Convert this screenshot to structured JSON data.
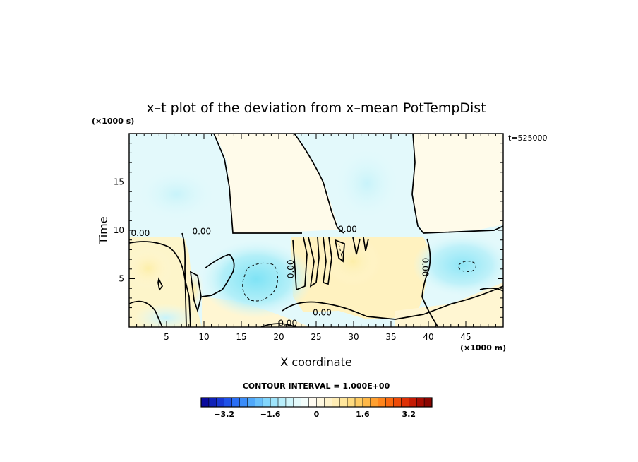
{
  "chart_data": {
    "type": "heatmap",
    "title": "x–t plot of the deviation from x–mean PotTempDist",
    "xlabel": "X coordinate",
    "ylabel": "Time",
    "x_unit": "(×1000 m)",
    "y_unit": "(×1000 s)",
    "time_stamp": "t=525000",
    "xlim": [
      0,
      50
    ],
    "ylim": [
      0,
      20
    ],
    "x_ticks": [
      5,
      10,
      15,
      20,
      25,
      30,
      35,
      40,
      45
    ],
    "y_ticks": [
      5,
      10,
      15
    ],
    "contour_interval_label": "CONTOUR INTERVAL = 1.000E+00",
    "contour_labels": [
      {
        "text": "0.00",
        "x": 1.5,
        "y": 9.4
      },
      {
        "text": "0.00",
        "x": 9.7,
        "y": 9.6
      },
      {
        "text": "0.00",
        "x": 29.2,
        "y": 9.8
      },
      {
        "text": "0.00",
        "x": 22.0,
        "y": 6.0
      },
      {
        "text": "0.00",
        "x": 39.2,
        "y": 6.2
      },
      {
        "text": "0.00",
        "x": 25.8,
        "y": 1.2
      },
      {
        "text": "0.00",
        "x": 21.2,
        "y": 0.1
      }
    ],
    "colorbar": {
      "range": [
        -4,
        4
      ],
      "ticks": [
        -3.2,
        -1.6,
        0,
        1.6,
        3.2
      ],
      "tick_labels": [
        "−3.2",
        "−1.6",
        "0",
        "1.6",
        "3.2"
      ],
      "colors": [
        "#0a0a9c",
        "#0f21b8",
        "#1737d2",
        "#1f52e8",
        "#2a6ef5",
        "#3a8cf8",
        "#50a8fa",
        "#68c0fb",
        "#82d6fc",
        "#9ee4fb",
        "#b8eefb",
        "#cff5fb",
        "#e4fafb",
        "#f3fdfb",
        "#fffbf0",
        "#fff8e0",
        "#fff3cc",
        "#ffedb5",
        "#ffe69c",
        "#ffdb80",
        "#ffcc63",
        "#ffb847",
        "#ffa030",
        "#ff851c",
        "#fb690f",
        "#ee4b08",
        "#dd3005",
        "#c41a03",
        "#a60c02",
        "#8a0501"
      ]
    },
    "regions": [
      {
        "name": "upper-warm-left",
        "value": 0.1
      },
      {
        "name": "upper-cold-middle",
        "value": -0.2
      },
      {
        "name": "upper-warm-right",
        "value": 0.1
      },
      {
        "name": "lower-cold-core-left",
        "value": -1.6
      },
      {
        "name": "lower-cold-core-right",
        "value": -1.3
      },
      {
        "name": "lower-warm-band",
        "value": 0.6
      }
    ]
  }
}
